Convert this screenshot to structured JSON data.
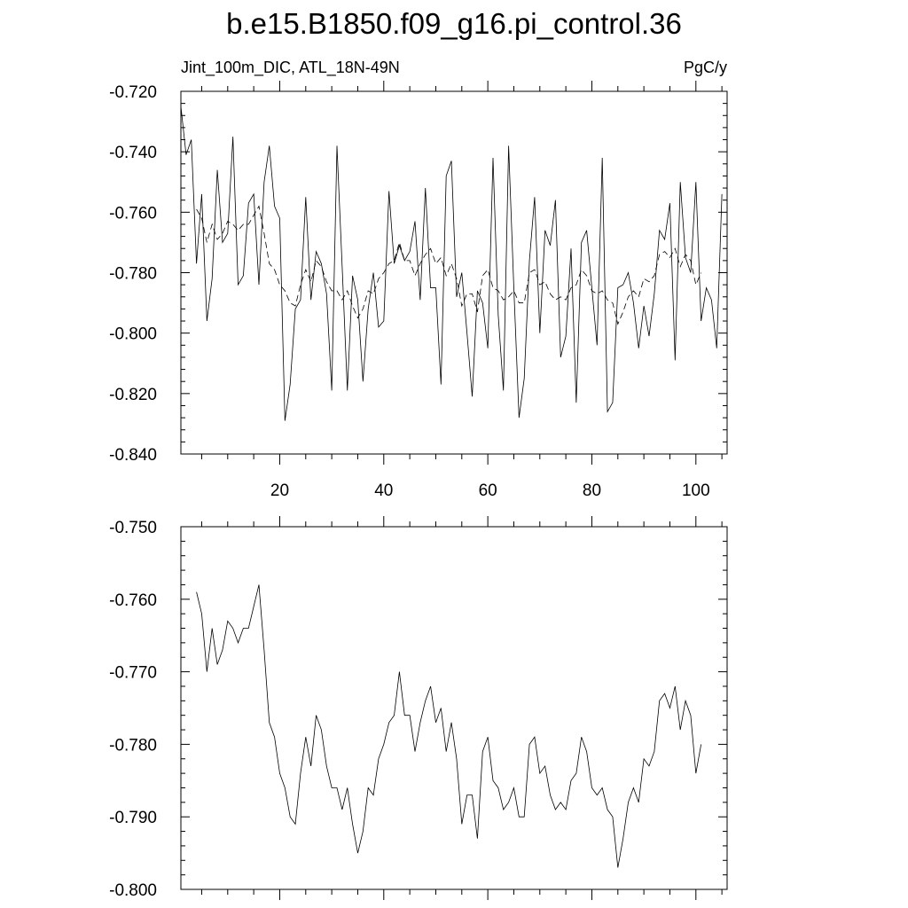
{
  "figure_title": "b.e15.B1850.f09_g16.pi_control.36",
  "chart_data": [
    {
      "type": "line",
      "title": "b.e15.B1850.f09_g16.pi_control.36",
      "left_label": "Jint_100m_DIC, ATL_18N-49N",
      "right_label": "PgC/y",
      "xlim": [
        1,
        106
      ],
      "ylim": [
        -0.84,
        -0.72
      ],
      "x_ticks": [
        20,
        40,
        60,
        80,
        100
      ],
      "y_ticks": [
        "-0.720",
        "-0.740",
        "-0.760",
        "-0.780",
        "-0.800",
        "-0.820",
        "-0.840"
      ],
      "x_tick_labels_shown": true,
      "series": [
        {
          "style": "solid",
          "x_start": 1,
          "values": [
            -0.725,
            -0.741,
            -0.736,
            -0.777,
            -0.754,
            -0.796,
            -0.782,
            -0.746,
            -0.77,
            -0.767,
            -0.735,
            -0.784,
            -0.781,
            -0.757,
            -0.754,
            -0.784,
            -0.75,
            -0.738,
            -0.758,
            -0.762,
            -0.829,
            -0.817,
            -0.792,
            -0.789,
            -0.755,
            -0.789,
            -0.773,
            -0.777,
            -0.787,
            -0.819,
            -0.738,
            -0.778,
            -0.819,
            -0.781,
            -0.789,
            -0.816,
            -0.792,
            -0.78,
            -0.798,
            -0.796,
            -0.753,
            -0.777,
            -0.771,
            -0.776,
            -0.773,
            -0.763,
            -0.789,
            -0.752,
            -0.785,
            -0.785,
            -0.817,
            -0.748,
            -0.743,
            -0.788,
            -0.78,
            -0.8,
            -0.821,
            -0.786,
            -0.79,
            -0.805,
            -0.742,
            -0.794,
            -0.819,
            -0.738,
            -0.785,
            -0.828,
            -0.815,
            -0.776,
            -0.755,
            -0.8,
            -0.766,
            -0.771,
            -0.756,
            -0.808,
            -0.801,
            -0.772,
            -0.823,
            -0.77,
            -0.766,
            -0.785,
            -0.804,
            -0.742,
            -0.826,
            -0.823,
            -0.785,
            -0.784,
            -0.78,
            -0.79,
            -0.805,
            -0.791,
            -0.801,
            -0.787,
            -0.766,
            -0.769,
            -0.757,
            -0.809,
            -0.75,
            -0.775,
            -0.78,
            -0.75,
            -0.796,
            -0.785,
            -0.789,
            -0.805,
            -0.754
          ]
        },
        {
          "style": "dashed",
          "x_start": 4,
          "values": [
            -0.759,
            -0.762,
            -0.77,
            -0.764,
            -0.769,
            -0.767,
            -0.763,
            -0.764,
            -0.766,
            -0.764,
            -0.764,
            -0.761,
            -0.758,
            -0.767,
            -0.777,
            -0.779,
            -0.784,
            -0.786,
            -0.79,
            -0.791,
            -0.784,
            -0.779,
            -0.783,
            -0.776,
            -0.778,
            -0.783,
            -0.786,
            -0.786,
            -0.789,
            -0.786,
            -0.791,
            -0.795,
            -0.792,
            -0.786,
            -0.787,
            -0.782,
            -0.78,
            -0.777,
            -0.776,
            -0.77,
            -0.776,
            -0.776,
            -0.781,
            -0.777,
            -0.774,
            -0.772,
            -0.777,
            -0.775,
            -0.781,
            -0.777,
            -0.782,
            -0.791,
            -0.787,
            -0.787,
            -0.793,
            -0.781,
            -0.779,
            -0.785,
            -0.786,
            -0.789,
            -0.788,
            -0.786,
            -0.79,
            -0.79,
            -0.78,
            -0.779,
            -0.784,
            -0.783,
            -0.787,
            -0.789,
            -0.788,
            -0.789,
            -0.785,
            -0.784,
            -0.779,
            -0.781,
            -0.786,
            -0.787,
            -0.786,
            -0.789,
            -0.79,
            -0.797,
            -0.793,
            -0.788,
            -0.786,
            -0.788,
            -0.782,
            -0.783,
            -0.781,
            -0.774,
            -0.773,
            -0.775,
            -0.772,
            -0.778,
            -0.774,
            -0.776,
            -0.784,
            -0.78
          ]
        }
      ]
    },
    {
      "type": "line",
      "xlim": [
        1,
        106
      ],
      "ylim": [
        -0.8,
        -0.75
      ],
      "y_ticks": [
        "-0.750",
        "-0.760",
        "-0.770",
        "-0.780",
        "-0.790",
        "-0.800"
      ],
      "x_tick_labels_shown": false,
      "series": [
        {
          "style": "solid",
          "x_start": 4,
          "values": [
            -0.759,
            -0.762,
            -0.77,
            -0.764,
            -0.769,
            -0.767,
            -0.763,
            -0.764,
            -0.766,
            -0.764,
            -0.764,
            -0.761,
            -0.758,
            -0.767,
            -0.777,
            -0.779,
            -0.784,
            -0.786,
            -0.79,
            -0.791,
            -0.784,
            -0.779,
            -0.783,
            -0.776,
            -0.778,
            -0.783,
            -0.786,
            -0.786,
            -0.789,
            -0.786,
            -0.791,
            -0.795,
            -0.792,
            -0.786,
            -0.787,
            -0.782,
            -0.78,
            -0.777,
            -0.776,
            -0.77,
            -0.776,
            -0.776,
            -0.781,
            -0.777,
            -0.774,
            -0.772,
            -0.777,
            -0.775,
            -0.781,
            -0.777,
            -0.782,
            -0.791,
            -0.787,
            -0.787,
            -0.793,
            -0.781,
            -0.779,
            -0.785,
            -0.786,
            -0.789,
            -0.788,
            -0.786,
            -0.79,
            -0.79,
            -0.78,
            -0.779,
            -0.784,
            -0.783,
            -0.787,
            -0.789,
            -0.788,
            -0.789,
            -0.785,
            -0.784,
            -0.779,
            -0.781,
            -0.786,
            -0.787,
            -0.786,
            -0.789,
            -0.79,
            -0.797,
            -0.793,
            -0.788,
            -0.786,
            -0.788,
            -0.782,
            -0.783,
            -0.781,
            -0.774,
            -0.773,
            -0.775,
            -0.772,
            -0.778,
            -0.774,
            -0.776,
            -0.784,
            -0.78
          ]
        }
      ]
    }
  ]
}
